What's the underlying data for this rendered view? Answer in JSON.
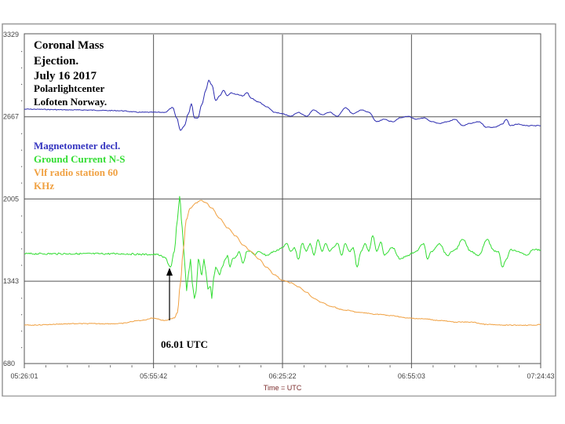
{
  "chart_data": {
    "type": "line",
    "title": [
      "Coronal Mass",
      "Ejection.",
      "July 16 2017",
      "Polarlightcenter",
      "Lofoten Norway."
    ],
    "xlabel": "Time = UTC",
    "x_unit": "minutes since 05:26:01",
    "xlim": [
      0,
      118.7
    ],
    "ylim": [
      680,
      3329
    ],
    "y_ticks": [
      "3329",
      "2667",
      "2005",
      "1343",
      "680"
    ],
    "y_tick_values": [
      3329,
      2667,
      2005,
      1343,
      680
    ],
    "x_ticks": [
      "05:26:01",
      "05:55:42",
      "06:25:22",
      "06:55:03",
      "07:24:43"
    ],
    "x_tick_values": [
      0,
      29.7,
      59.35,
      89.0,
      118.7
    ],
    "grid": true,
    "legend_placement": "top-left",
    "annotation": {
      "text": "06.01 UTC",
      "x": 33.2,
      "y": 1470
    },
    "series": [
      {
        "name": "Magnetometer decl.",
        "color": "#2b2bb0",
        "x": [
          0,
          12.4,
          21.5,
          26.9,
          30.5,
          32.3,
          34.1,
          35.0,
          35.9,
          36.8,
          37.7,
          38.4,
          39.1,
          39.9,
          40.8,
          41.7,
          42.4,
          43.1,
          44.0,
          44.9,
          45.8,
          46.7,
          47.6,
          48.5,
          50.3,
          51.2,
          52.1,
          53.9,
          55.7,
          57.5,
          59.4,
          61.2,
          63.0,
          64.8,
          66.6,
          68.4,
          70.2,
          72.0,
          73.8,
          75.6,
          77.4,
          79.2,
          81.0,
          82.8,
          84.6,
          86.4,
          88.2,
          90.0,
          91.8,
          93.6,
          95.4,
          97.2,
          99.0,
          100.8,
          102.6,
          104.5,
          106.3,
          108.1,
          109.9,
          110.8,
          111.7,
          113.5,
          115.3,
          117.1,
          118.7
        ],
        "y": [
          2728,
          2722,
          2716,
          2703,
          2703,
          2703,
          2741,
          2658,
          2557,
          2595,
          2690,
          2772,
          2658,
          2658,
          2766,
          2880,
          2962,
          2924,
          2798,
          2836,
          2880,
          2836,
          2861,
          2848,
          2836,
          2861,
          2817,
          2785,
          2747,
          2703,
          2690,
          2671,
          2703,
          2671,
          2722,
          2684,
          2703,
          2671,
          2741,
          2690,
          2722,
          2703,
          2627,
          2646,
          2627,
          2658,
          2671,
          2646,
          2658,
          2627,
          2614,
          2627,
          2646,
          2595,
          2614,
          2627,
          2583,
          2583,
          2608,
          2646,
          2595,
          2608,
          2595,
          2595,
          2595
        ]
      },
      {
        "name": "Ground Current N-S",
        "color": "#33dd33",
        "x": [
          0,
          12.4,
          21.5,
          28.7,
          30.5,
          32.3,
          33.6,
          34.5,
          35.2,
          35.7,
          36.3,
          36.8,
          37.3,
          37.7,
          38.2,
          38.6,
          39.1,
          39.5,
          40.0,
          40.8,
          41.3,
          41.7,
          42.2,
          42.8,
          43.1,
          43.5,
          44.0,
          44.5,
          44.9,
          45.5,
          46.2,
          46.7,
          47.3,
          47.8,
          48.5,
          49.4,
          50.3,
          51.2,
          52.1,
          53.0,
          53.9,
          55.7,
          57.5,
          59.4,
          60.3,
          61.2,
          62.1,
          63.0,
          63.9,
          64.8,
          65.7,
          66.6,
          67.5,
          68.4,
          69.3,
          70.2,
          71.1,
          72.0,
          72.9,
          73.8,
          74.7,
          75.6,
          76.5,
          77.4,
          78.3,
          79.2,
          80.1,
          81.0,
          81.9,
          82.8,
          84.6,
          86.4,
          88.2,
          90.0,
          91.8,
          92.7,
          93.6,
          95.4,
          97.2,
          99.0,
          100.8,
          102.6,
          104.5,
          106.3,
          108.1,
          109.0,
          109.9,
          110.8,
          111.7,
          113.5,
          115.3,
          117.1,
          118.7
        ],
        "y": [
          1564,
          1564,
          1564,
          1558,
          1558,
          1533,
          1457,
          1583,
          1836,
          2026,
          1773,
          1520,
          1267,
          1394,
          1520,
          1330,
          1204,
          1267,
          1520,
          1394,
          1520,
          1425,
          1280,
          1299,
          1204,
          1362,
          1457,
          1425,
          1394,
          1457,
          1520,
          1552,
          1457,
          1520,
          1533,
          1583,
          1488,
          1583,
          1583,
          1552,
          1583,
          1552,
          1583,
          1615,
          1647,
          1583,
          1615,
          1520,
          1647,
          1583,
          1647,
          1552,
          1678,
          1583,
          1647,
          1583,
          1615,
          1647,
          1552,
          1647,
          1583,
          1615,
          1457,
          1583,
          1647,
          1583,
          1710,
          1583,
          1659,
          1552,
          1615,
          1520,
          1552,
          1583,
          1647,
          1520,
          1583,
          1647,
          1552,
          1596,
          1678,
          1583,
          1552,
          1678,
          1583,
          1583,
          1457,
          1520,
          1596,
          1583,
          1552,
          1596,
          1596
        ]
      },
      {
        "name": "Vlf radio station 60 KHz",
        "color": "#f0a040",
        "x": [
          0,
          12.4,
          21.5,
          26.9,
          29.6,
          32.3,
          34.5,
          35.2,
          35.9,
          36.5,
          37.2,
          38.1,
          39.5,
          40.6,
          41.7,
          43.1,
          44.9,
          46.7,
          48.5,
          50.3,
          52.1,
          53.9,
          55.7,
          57.5,
          59.4,
          61.2,
          63.0,
          64.8,
          66.6,
          68.4,
          70.2,
          73.8,
          77.4,
          81.0,
          84.6,
          88.2,
          91.8,
          95.4,
          99.0,
          102.6,
          106.3,
          109.9,
          113.5,
          117.1,
          118.7
        ],
        "y": [
          989,
          1001,
          1001,
          1027,
          1046,
          1027,
          1046,
          1090,
          1330,
          1583,
          1836,
          1931,
          1975,
          1994,
          1975,
          1931,
          1849,
          1773,
          1710,
          1634,
          1583,
          1520,
          1457,
          1394,
          1349,
          1330,
          1299,
          1254,
          1204,
          1172,
          1141,
          1109,
          1090,
          1077,
          1065,
          1046,
          1040,
          1027,
          1014,
          1014,
          995,
          989,
          989,
          989,
          995
        ]
      }
    ],
    "legend": [
      "Magnetometer decl.",
      "Ground Current N-S",
      "Vlf radio station 60",
      "KHz"
    ]
  }
}
